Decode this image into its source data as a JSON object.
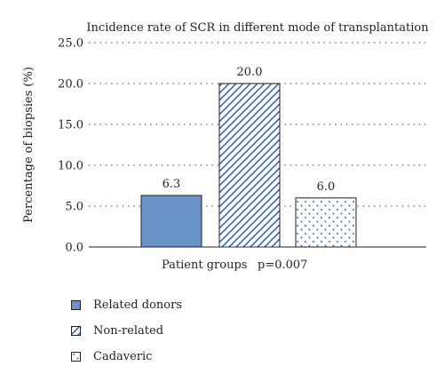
{
  "chart_data": {
    "type": "bar",
    "title": "Incidence rate of SCR in different mode of transplantation",
    "xlabel": "Patient groups",
    "annotation": "p=0.007",
    "ylabel": "Percentage of biopsies (%)",
    "ylim": [
      0,
      25
    ],
    "yticks": [
      "0.0",
      "5.0",
      "10.0",
      "15.0",
      "20.0",
      "25.0"
    ],
    "grid": "horizontal dotted",
    "legend_position": "bottom-left",
    "categories": [
      "Related donors",
      "Non-related",
      "Cadaveric"
    ],
    "values": [
      6.3,
      20.0,
      6.0
    ],
    "value_labels": [
      "6.3",
      "20.0",
      "6.0"
    ],
    "fills": [
      "solid",
      "diagonal-hatch",
      "dotted"
    ],
    "colors": {
      "solid": "#6a93c8",
      "hatch": "#3d68a8",
      "dots": "#5b84c2",
      "axis": "#222222",
      "grid": "#555555"
    }
  }
}
